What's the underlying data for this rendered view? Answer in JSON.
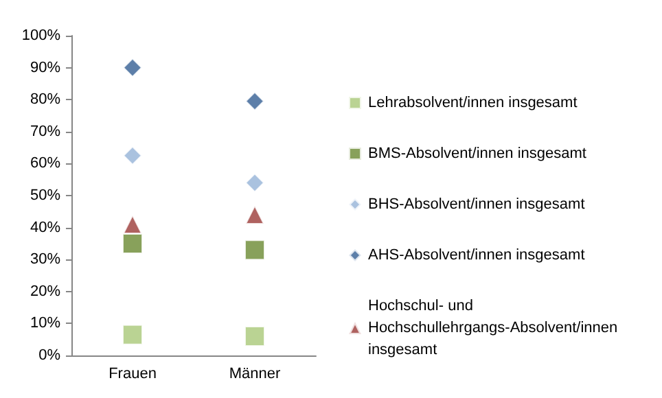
{
  "chart_data": {
    "type": "scatter",
    "categories": [
      "Frauen",
      "Männer"
    ],
    "series": [
      {
        "name": "Lehrabsolvent/innen insgesamt",
        "color": "#a9c878",
        "marker": "square",
        "values": [
          6.5,
          6
        ]
      },
      {
        "name": "BMS-Absolvent/innen insgesamt",
        "color": "#6a8a32",
        "marker": "square",
        "values": [
          35,
          33
        ]
      },
      {
        "name": "BHS-Absolvent/innen insgesamt",
        "color": "#95b3d7",
        "marker": "diamond",
        "values": [
          62.5,
          54
        ]
      },
      {
        "name": "AHS-Absolvent/innen insgesamt",
        "color": "#345f94",
        "marker": "diamond",
        "values": [
          90,
          79.5
        ]
      },
      {
        "name": "Hochschul- und Hochschullehrgangs-Absolvent/innen insgesamt",
        "color": "#9b3b38",
        "marker": "triangle",
        "values": [
          41,
          44
        ]
      }
    ],
    "ylim": [
      0,
      100
    ],
    "yticks": [
      {
        "value": 0,
        "label": "0%"
      },
      {
        "value": 10,
        "label": "10%"
      },
      {
        "value": 20,
        "label": "20%"
      },
      {
        "value": 30,
        "label": "30%"
      },
      {
        "value": 40,
        "label": "40%"
      },
      {
        "value": 50,
        "label": "50%"
      },
      {
        "value": 60,
        "label": "60%"
      },
      {
        "value": 70,
        "label": "70%"
      },
      {
        "value": 80,
        "label": "80%"
      },
      {
        "value": 90,
        "label": "90%"
      },
      {
        "value": 100,
        "label": "100%"
      }
    ],
    "legend": "right",
    "grid": false
  }
}
